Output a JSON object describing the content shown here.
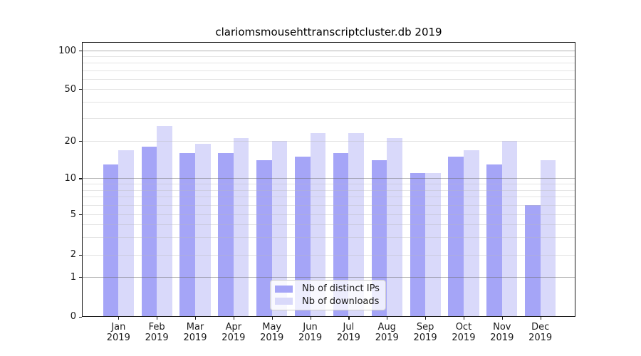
{
  "chart_data": {
    "type": "bar",
    "title": "clariomsmousehttranscriptcluster.db 2019",
    "categories": [
      "Jan",
      "Feb",
      "Mar",
      "Apr",
      "May",
      "Jun",
      "Jul",
      "Aug",
      "Sep",
      "Oct",
      "Nov",
      "Dec"
    ],
    "year_label": "2019",
    "series": [
      {
        "name": "Nb of distinct IPs",
        "color": "#a5a5f7",
        "values": [
          13,
          18,
          16,
          16,
          14,
          15,
          16,
          14,
          11,
          15,
          13,
          6
        ]
      },
      {
        "name": "Nb of downloads",
        "color": "#d9d9fa",
        "values": [
          17,
          26,
          19,
          21,
          20,
          23,
          23,
          21,
          11,
          17,
          20,
          14
        ]
      }
    ],
    "xlabel": "",
    "ylabel": "",
    "yaxis": {
      "scale": "log-like (0 baseline, log above 1)",
      "tick_labels": [
        0,
        1,
        2,
        5,
        10,
        20,
        50,
        100
      ],
      "minor_gridlines": [
        2,
        3,
        4,
        5,
        6,
        7,
        8,
        9,
        20,
        30,
        40,
        50,
        60,
        70,
        80,
        90
      ],
      "major_gridlines": [
        1,
        10,
        100
      ],
      "ylim": [
        0,
        120
      ]
    },
    "legend": {
      "position": "bottom-center",
      "entries": [
        "Nb of distinct IPs",
        "Nb of downloads"
      ]
    },
    "grid": "on"
  },
  "colors": {
    "background": "#ffffff",
    "bar_distinct_ips": "#a5a5f7",
    "bar_downloads": "#d9d9fa",
    "spine": "#1a1a1a",
    "legend_border": "#cccccc"
  }
}
